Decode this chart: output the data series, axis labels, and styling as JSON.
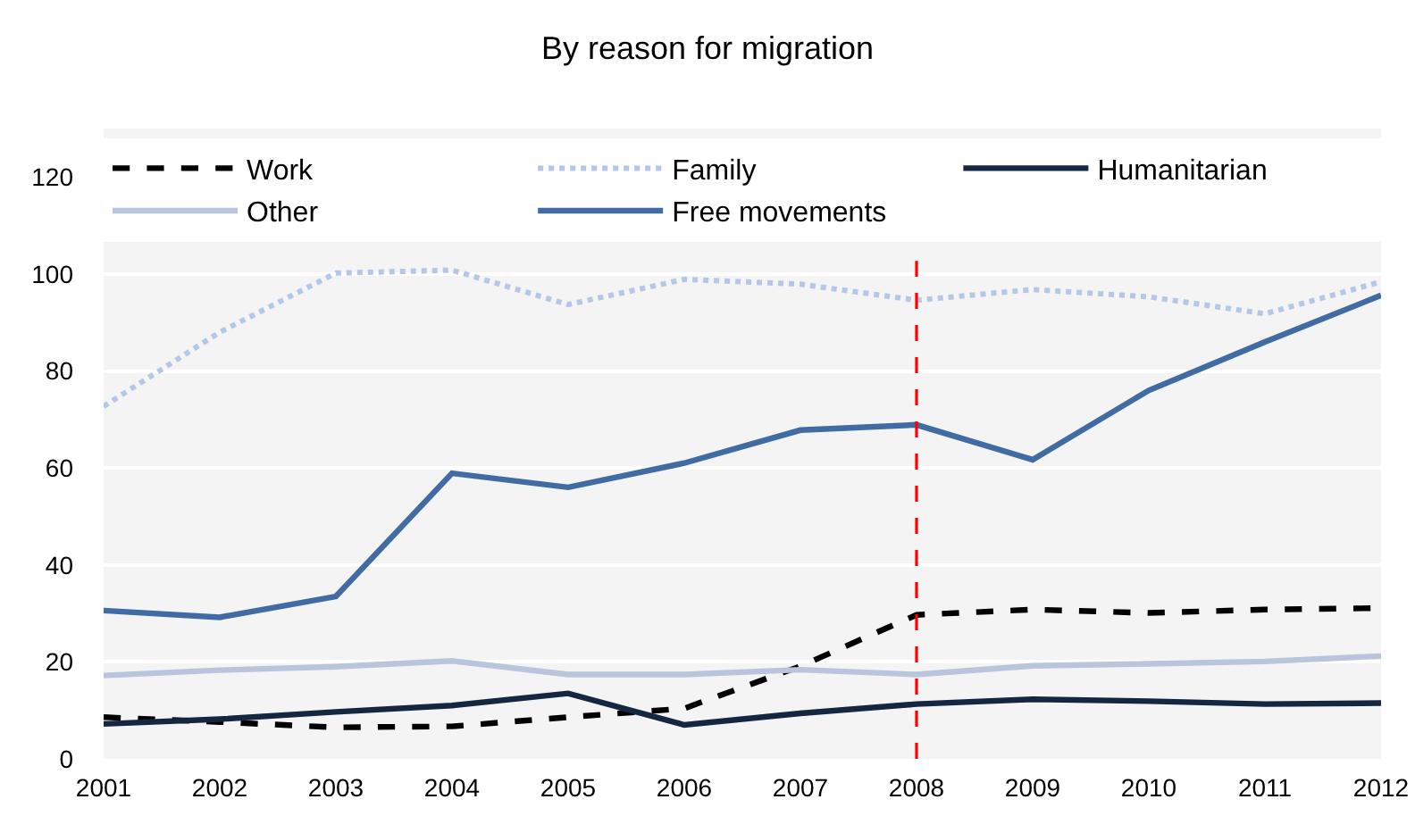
{
  "chart_data": {
    "type": "line",
    "title": "By reason for migration",
    "x": [
      2001,
      2002,
      2003,
      2004,
      2005,
      2006,
      2007,
      2008,
      2009,
      2010,
      2011,
      2012
    ],
    "series": [
      {
        "name": "Work",
        "color": "#000000",
        "line_style": "dashed",
        "values": [
          8.6,
          7.6,
          6.5,
          6.7,
          8.6,
          10.4,
          19.1,
          29.7,
          30.8,
          30.1,
          30.8,
          31.1
        ]
      },
      {
        "name": "Family",
        "color": "#b4c7e7",
        "line_style": "dotted",
        "values": [
          72.7,
          88.0,
          100.2,
          100.8,
          93.7,
          98.9,
          97.9,
          94.6,
          96.8,
          95.3,
          91.8,
          98.4
        ]
      },
      {
        "name": "Humanitarian",
        "color": "#142640",
        "line_style": "solid",
        "values": [
          7.2,
          8.2,
          9.7,
          11.0,
          13.5,
          7.0,
          9.4,
          11.3,
          12.3,
          11.9,
          11.3,
          11.5
        ]
      },
      {
        "name": "Other",
        "color": "#b9c5dd",
        "line_style": "solid",
        "values": [
          17.2,
          18.3,
          19.0,
          20.2,
          17.4,
          17.4,
          18.4,
          17.4,
          19.2,
          19.6,
          20.1,
          21.2
        ]
      },
      {
        "name": "Free movements",
        "color": "#416ba3",
        "line_style": "solid",
        "values": [
          30.6,
          29.2,
          33.5,
          58.9,
          56.0,
          61.0,
          67.8,
          68.9,
          61.7,
          76.0,
          86.0,
          95.6
        ]
      }
    ],
    "xlim": [
      2001,
      2012
    ],
    "xticks": [
      2001,
      2002,
      2003,
      2004,
      2005,
      2006,
      2007,
      2008,
      2009,
      2010,
      2011,
      2012
    ],
    "ylim": [
      0,
      130
    ],
    "yticks": [
      0,
      20,
      40,
      60,
      80,
      100,
      120
    ],
    "grid": "y",
    "legend": "top",
    "marker": "none",
    "ref_lines": [
      {
        "axis": "x",
        "value": 2008,
        "color": "#ff0000",
        "line_style": "dashed"
      }
    ]
  }
}
